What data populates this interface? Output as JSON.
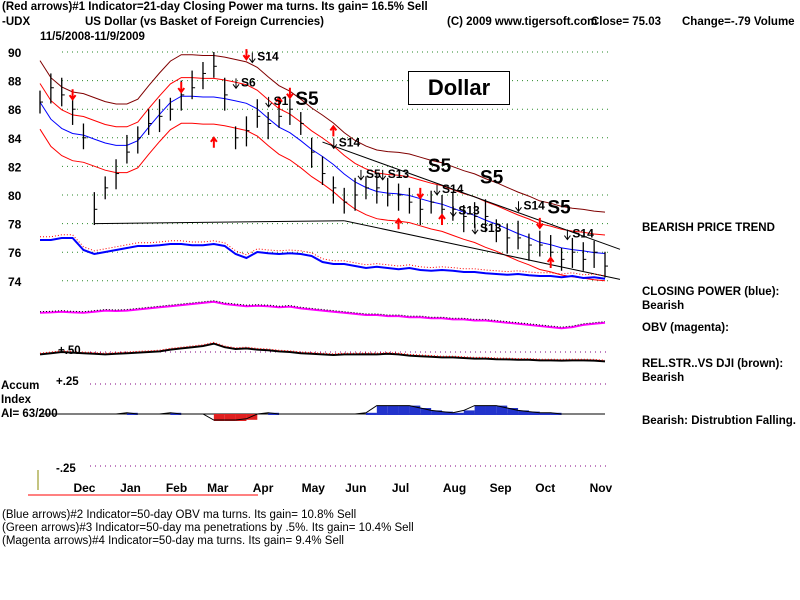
{
  "header": {
    "line1": "(Red arrows)#1 Indicator=21-day Closing Power ma turns. Its gain= 16.5% Sell",
    "symbol": "-UDX",
    "name": "US Dollar (vs Basket of Foreign Currencies)",
    "copyright": "(C) 2009 www.tigersoft.com",
    "close": "Close=  75.03",
    "change": "Change=-.79 Volume",
    "date_range": "11/5/2008-11/9/2009"
  },
  "title_box": "Dollar",
  "right_labels": {
    "trend": "BEARISH PRICE TREND",
    "cp": "CLOSING POWER (blue):",
    "cp_val": "Bearish",
    "obv": "OBV (magenta):",
    "rs": "REL.STR..VS DJI (brown):",
    "rs_val": "Bearish",
    "ai": "Bearish: Distrubtion Falling."
  },
  "accum": {
    "l1": "Accum",
    "l2": "Index",
    "l3": "AI= 63/200",
    "p50": "+.50",
    "p25": "+.25",
    "m25": "-.25"
  },
  "footer": [
    "(Blue arrows)#2 Indicator=50-day OBV ma turns. Its gain= 10.8% Sell",
    "(Green arrows)#3 Indicator=50-day ma penetrations by .5%. Its gain= 10.4% Sell",
    "(Magenta arrows)#4 Indicator=50-day ma turns. Its gain= 9.4% Sell"
  ],
  "chart_data": {
    "type": "line",
    "title": "US Dollar (vs Basket of Foreign Currencies)",
    "ylim": [
      73,
      91
    ],
    "yticks": [
      "90",
      "88",
      "86",
      "84",
      "82",
      "80",
      "78",
      "76",
      "74"
    ],
    "ytick_values": [
      90,
      88,
      86,
      84,
      82,
      80,
      78,
      76,
      74
    ],
    "months": [
      "Dec",
      "Jan",
      "Feb",
      "Mar",
      "Apr",
      "May",
      "Jun",
      "Jul",
      "Aug",
      "Sep",
      "Oct",
      "Nov"
    ],
    "month_week": [
      4,
      8.3,
      12.5,
      16.3,
      20.5,
      25,
      29,
      33.3,
      38,
      42.3,
      46.5,
      51.5
    ],
    "weekly_close": [
      86.5,
      87.5,
      87.0,
      86.0,
      84,
      79,
      80.5,
      81.5,
      83,
      84,
      85,
      85.5,
      86,
      87,
      87.5,
      88.5,
      89,
      87,
      84,
      84.5,
      85.5,
      85,
      85.5,
      86,
      85,
      83,
      81.5,
      80.5,
      79.5,
      80,
      80.5,
      80.5,
      80,
      80,
      79.5,
      79,
      79.5,
      79,
      79,
      78.5,
      78.5,
      78.5,
      77.5,
      77,
      77,
      76.5,
      76.5,
      76,
      75.5,
      76,
      75.5,
      76,
      75.03
    ],
    "closing_power": [
      0.55,
      0.55,
      0.6,
      0.6,
      0.3,
      0.2,
      0.25,
      0.3,
      0.35,
      0.4,
      0.4,
      0.42,
      0.45,
      0.45,
      0.42,
      0.42,
      0.45,
      0.4,
      0.2,
      0.1,
      0.25,
      0.22,
      0.2,
      0.22,
      0.2,
      0.15,
      0.0,
      -0.05,
      -0.05,
      -0.1,
      -0.15,
      -0.12,
      -0.15,
      -0.18,
      -0.15,
      -0.2,
      -0.22,
      -0.2,
      -0.22,
      -0.25,
      -0.25,
      -0.28,
      -0.3,
      -0.32,
      -0.3,
      -0.33,
      -0.35,
      -0.35,
      -0.38,
      -0.35,
      -0.4,
      -0.38,
      -0.42
    ],
    "obv": [
      0.1,
      0.12,
      0.15,
      0.12,
      0.1,
      0.15,
      0.2,
      0.18,
      0.2,
      0.25,
      0.3,
      0.35,
      0.4,
      0.45,
      0.5,
      0.55,
      0.6,
      0.5,
      0.45,
      0.4,
      0.42,
      0.4,
      0.35,
      0.38,
      0.3,
      0.25,
      0.2,
      0.15,
      0.1,
      0.05,
      0.0,
      0.0,
      -0.05,
      -0.05,
      -0.1,
      -0.1,
      -0.15,
      -0.15,
      -0.2,
      -0.2,
      -0.25,
      -0.25,
      -0.3,
      -0.35,
      -0.4,
      -0.45,
      -0.5,
      -0.55,
      -0.6,
      -0.55,
      -0.45,
      -0.4,
      -0.35
    ],
    "rel_str": [
      0.3,
      0.4,
      0.5,
      0.45,
      0.4,
      0.35,
      0.3,
      0.35,
      0.4,
      0.45,
      0.5,
      0.55,
      0.7,
      0.8,
      0.9,
      1.0,
      1.2,
      0.9,
      0.75,
      0.8,
      0.7,
      0.65,
      0.55,
      0.5,
      0.4,
      0.35,
      0.3,
      0.25,
      0.3,
      0.3,
      0.32,
      0.3,
      0.35,
      0.3,
      0.2,
      0.15,
      0.1,
      0.05,
      0.05,
      0.0,
      -0.05,
      -0.05,
      -0.1,
      -0.12,
      -0.15,
      -0.15,
      -0.2,
      -0.2,
      -0.22,
      -0.2,
      -0.2,
      -0.22,
      -0.28
    ],
    "accum_index": [
      0,
      0,
      0,
      0,
      0,
      0,
      0,
      0,
      0.01,
      0,
      0,
      0,
      0.01,
      0,
      0,
      0,
      -0.05,
      -0.05,
      -0.05,
      -0.04,
      0,
      0.01,
      0,
      0,
      0,
      0,
      0,
      0,
      0,
      0,
      0.01,
      0.07,
      0.07,
      0.07,
      0.07,
      0.05,
      0.03,
      0.02,
      0.01,
      0.03,
      0.07,
      0.07,
      0.07,
      0.05,
      0.03,
      0.02,
      0.01,
      0.01,
      0,
      0,
      0,
      0,
      0
    ],
    "signals": [
      {
        "label": "S14",
        "week": 20,
        "price": 89.4,
        "big": false
      },
      {
        "label": "S6",
        "week": 18.5,
        "price": 87.6,
        "big": false
      },
      {
        "label": "S1",
        "week": 21.5,
        "price": 86.3,
        "big": false
      },
      {
        "label": "S5",
        "week": 23.5,
        "price": 86.3,
        "big": true
      },
      {
        "label": "S14",
        "week": 27.5,
        "price": 83.4,
        "big": false
      },
      {
        "label": "S5",
        "week": 30,
        "price": 81.2,
        "big": false
      },
      {
        "label": "S13",
        "week": 32,
        "price": 81.2,
        "big": false
      },
      {
        "label": "S5",
        "week": 35.7,
        "price": 81.6,
        "big": true
      },
      {
        "label": "S14",
        "week": 37,
        "price": 81.2,
        "big": false
      },
      {
        "label": "S5",
        "week": 40.5,
        "price": 80.8,
        "big": true
      },
      {
        "label": "S13",
        "week": 38.5,
        "price": 79.7,
        "big": false
      },
      {
        "label": "S13",
        "week": 40.5,
        "price": 79.0,
        "big": false
      },
      {
        "label": "S14",
        "week": 44.5,
        "price": 79.0,
        "big": false
      },
      {
        "label": "S5",
        "week": 46.7,
        "price": 78.7,
        "big": true
      },
      {
        "label": "S14",
        "week": 49,
        "price": 78.6,
        "big": false
      }
    ]
  }
}
